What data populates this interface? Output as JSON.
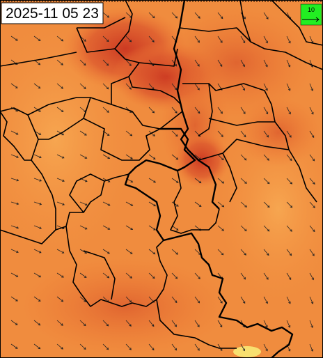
{
  "header": {
    "timestamp": "2025-11 05 23"
  },
  "legend": {
    "wind_scale": "10"
  }
}
